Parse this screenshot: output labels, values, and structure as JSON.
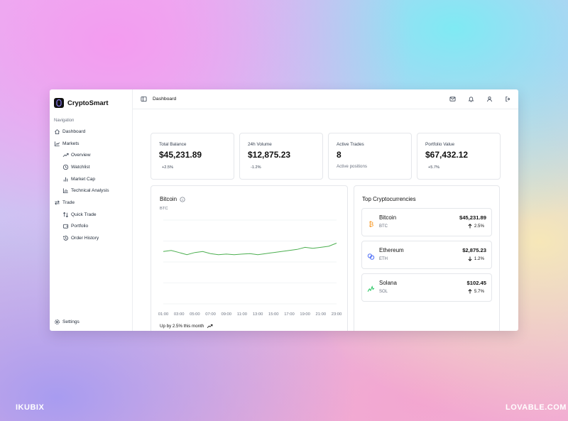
{
  "app": {
    "name": "CryptoSmart",
    "page_title": "Dashboard"
  },
  "sidebar": {
    "caption": "Navigation",
    "items": [
      {
        "label": "Dashboard",
        "icon": "home-icon",
        "sub": false
      },
      {
        "label": "Markets",
        "icon": "chart-line-icon",
        "sub": false
      },
      {
        "label": "Overview",
        "icon": "trending-up-icon",
        "sub": true
      },
      {
        "label": "Watchlist",
        "icon": "clock-icon",
        "sub": true
      },
      {
        "label": "Market Cap",
        "icon": "bar-chart-icon",
        "sub": true
      },
      {
        "label": "Technical Analysis",
        "icon": "chart-box-icon",
        "sub": true
      },
      {
        "label": "Trade",
        "icon": "arrows-swap-icon",
        "sub": false
      },
      {
        "label": "Quick Trade",
        "icon": "arrows-swap-icon",
        "sub": true
      },
      {
        "label": "Portfolio",
        "icon": "wallet-icon",
        "sub": true
      },
      {
        "label": "Order History",
        "icon": "history-icon",
        "sub": true
      }
    ],
    "settings_label": "Settings"
  },
  "stats": [
    {
      "label": "Total Balance",
      "value": "$45,231.89",
      "change": "+2.5%"
    },
    {
      "label": "24h Volume",
      "value": "$12,875.23",
      "change": "-1.2%"
    },
    {
      "label": "Active Trades",
      "value": "8",
      "note": "Active positions"
    },
    {
      "label": "Portfolio Value",
      "value": "$67,432.12",
      "change": "+5.7%"
    }
  ],
  "chart": {
    "title": "Bitcoin",
    "subtitle": "BTC",
    "footer": "Up by 2.5% this month",
    "line_color": "#4caf50"
  },
  "chart_data": {
    "type": "line",
    "x": [
      "01:00",
      "02:00",
      "03:00",
      "04:00",
      "05:00",
      "06:00",
      "07:00",
      "08:00",
      "09:00",
      "10:00",
      "11:00",
      "12:00",
      "13:00",
      "14:00",
      "15:00",
      "16:00",
      "17:00",
      "18:00",
      "19:00",
      "20:00",
      "21:00",
      "22:00",
      "23:00"
    ],
    "x_tick_labels": [
      "01:00",
      "03:00",
      "05:00",
      "07:00",
      "09:00",
      "11:00",
      "13:00",
      "15:00",
      "17:00",
      "19:00",
      "21:00",
      "23:00"
    ],
    "series": [
      {
        "values": [
          45.0,
          45.1,
          44.9,
          44.7,
          44.9,
          45.0,
          44.8,
          44.7,
          44.75,
          44.7,
          44.75,
          44.8,
          44.7,
          44.8,
          44.9,
          45.0,
          45.1,
          45.2,
          45.4,
          45.3,
          45.4,
          45.5,
          45.8
        ]
      }
    ],
    "ylim": [
      40,
      48
    ],
    "grid": true
  },
  "top_cryptos": {
    "title": "Top Cryptocurrencies",
    "items": [
      {
        "name": "Bitcoin",
        "symbol": "BTC",
        "price": "$45,231.89",
        "change": "2.5%",
        "direction": "up",
        "icon": "bitcoin-icon",
        "color": "#f7931a"
      },
      {
        "name": "Ethereum",
        "symbol": "ETH",
        "price": "$2,875.23",
        "change": "1.2%",
        "direction": "down",
        "icon": "ethereum-icon",
        "color": "#4f6ef7"
      },
      {
        "name": "Solana",
        "symbol": "SOL",
        "price": "$102.45",
        "change": "5.7%",
        "direction": "up",
        "icon": "solana-icon",
        "color": "#22c55e"
      }
    ]
  },
  "watermarks": {
    "left": "IKUBIX",
    "right": "LOVABLE.COM"
  }
}
